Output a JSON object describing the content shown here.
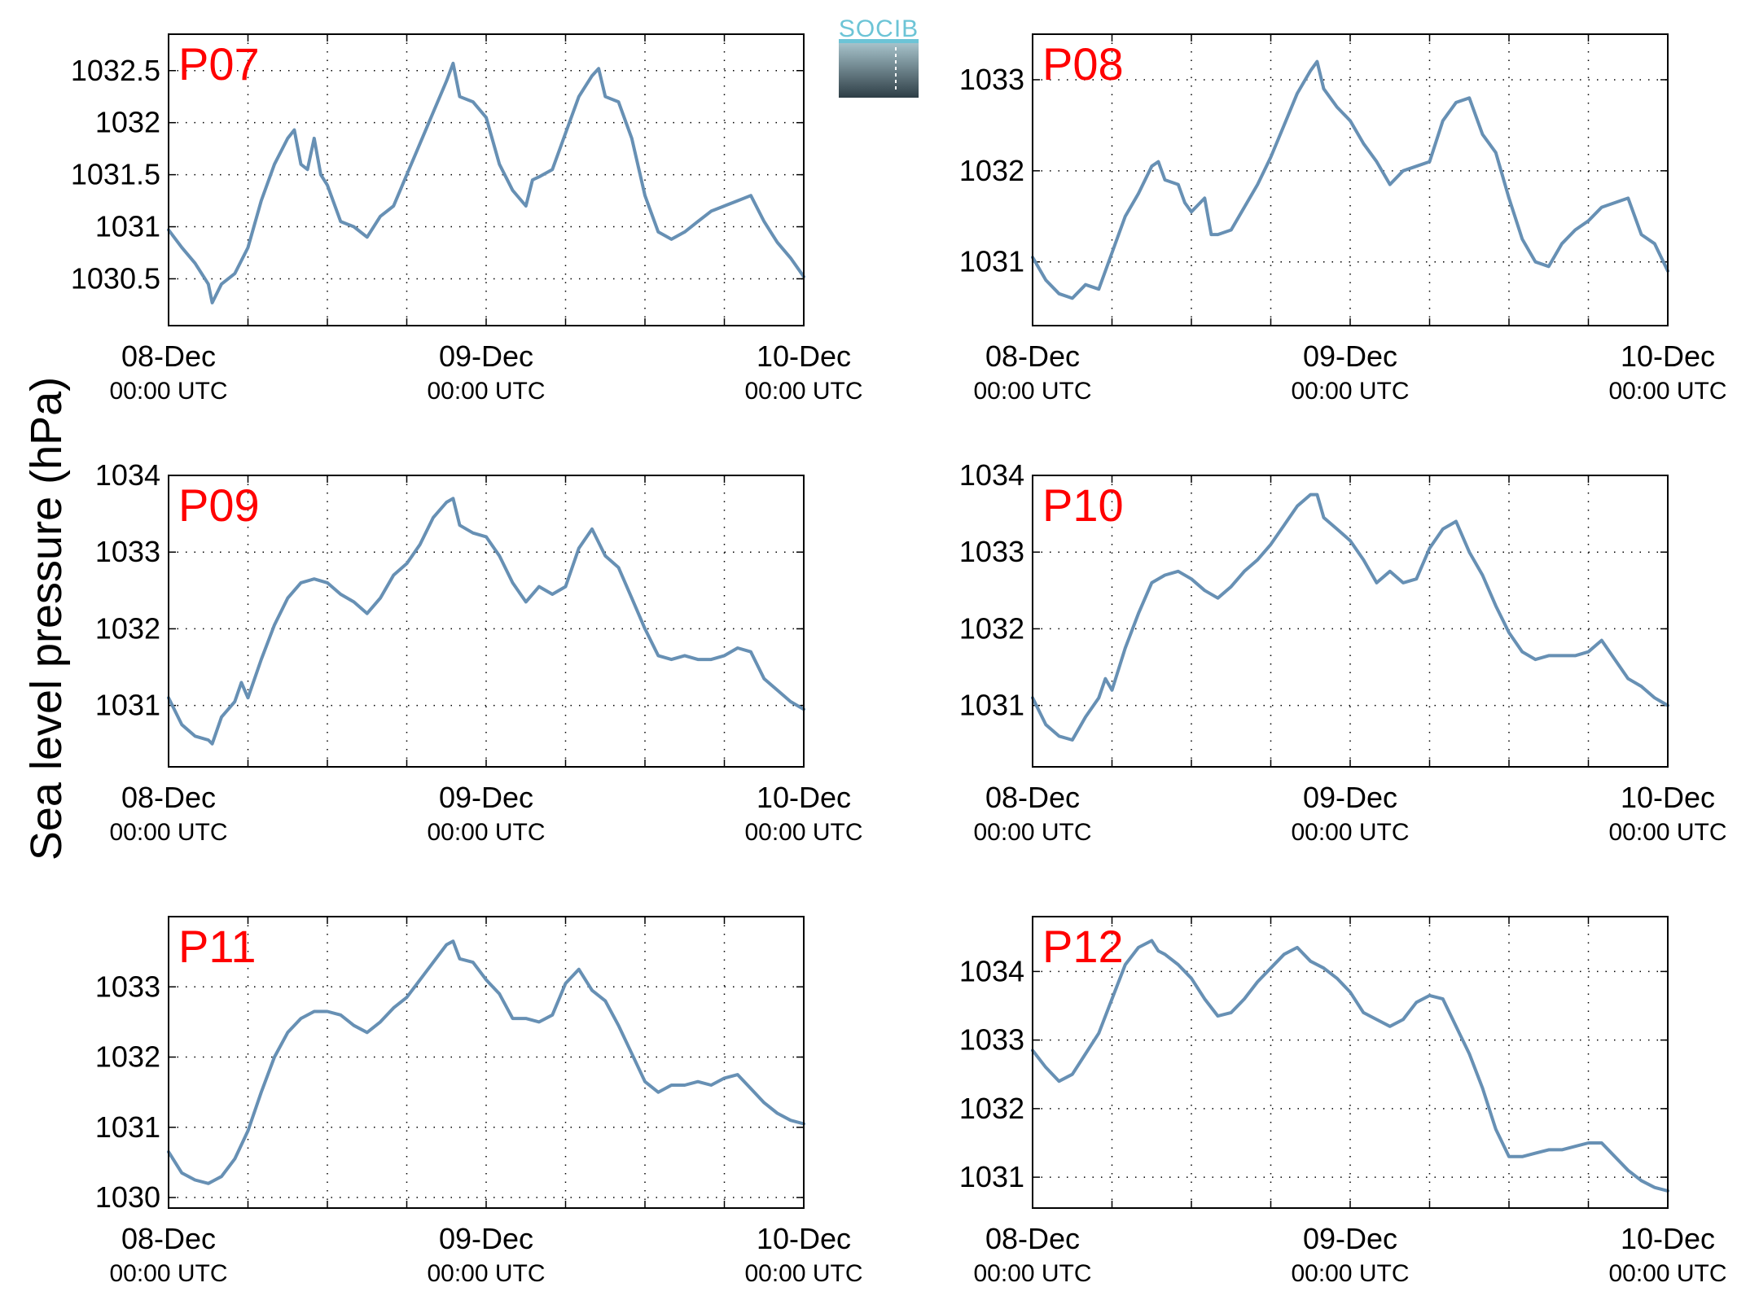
{
  "figure": {
    "ylabel": "Sea level pressure (hPa)",
    "logo_text": "SOCIB",
    "line_color": "#6790b4",
    "label_color": "#ff0000",
    "grid": "dotted"
  },
  "chart_data": [
    {
      "type": "line",
      "title": "P07",
      "ylabel": "Sea level pressure (hPa)",
      "x_tick_labels": [
        [
          "08-Dec",
          "00:00 UTC"
        ],
        [
          "09-Dec",
          "00:00 UTC"
        ],
        [
          "10-Dec",
          "00:00 UTC"
        ]
      ],
      "x_range_hours": [
        0,
        48
      ],
      "ylim": [
        1030.05,
        1032.85
      ],
      "yticks": [
        1030.5,
        1031,
        1031.5,
        1032,
        1032.5
      ],
      "ytick_labels": [
        "1030.5",
        "1031",
        "1031.5",
        "1032",
        "1032.5"
      ],
      "grid": true,
      "series": [
        {
          "x": [
            0,
            1,
            2,
            3,
            3.3,
            4,
            5,
            6,
            7,
            8,
            9,
            9.5,
            10,
            10.5,
            11,
            11.5,
            12,
            13,
            14,
            15,
            16,
            17,
            18,
            19,
            20,
            21,
            21.5,
            22,
            23,
            24,
            25,
            26,
            27,
            27.5,
            28,
            29,
            30,
            31,
            32,
            32.5,
            33,
            34,
            35,
            36,
            37,
            38,
            39,
            40,
            41,
            42,
            43,
            44,
            45,
            45.5,
            46,
            47,
            48
          ],
          "values": [
            1030.97,
            1030.8,
            1030.65,
            1030.45,
            1030.27,
            1030.45,
            1030.55,
            1030.8,
            1031.25,
            1031.6,
            1031.85,
            1031.93,
            1031.6,
            1031.55,
            1031.85,
            1031.5,
            1031.4,
            1031.05,
            1031.0,
            1030.9,
            1031.1,
            1031.2,
            1031.5,
            1031.8,
            1032.1,
            1032.4,
            1032.57,
            1032.25,
            1032.2,
            1032.05,
            1031.6,
            1031.35,
            1031.2,
            1031.45,
            1031.48,
            1031.55,
            1031.9,
            1032.25,
            1032.45,
            1032.52,
            1032.25,
            1032.2,
            1031.85,
            1031.3,
            1030.95,
            1030.88,
            1030.95,
            1031.05,
            1031.15,
            1031.2,
            1031.25,
            1031.3,
            1031.05,
            1030.95,
            1030.85,
            1030.7,
            1030.52
          ]
        }
      ]
    },
    {
      "type": "line",
      "title": "P08",
      "ylabel": "Sea level pressure (hPa)",
      "x_tick_labels": [
        [
          "08-Dec",
          "00:00 UTC"
        ],
        [
          "09-Dec",
          "00:00 UTC"
        ],
        [
          "10-Dec",
          "00:00 UTC"
        ]
      ],
      "x_range_hours": [
        0,
        48
      ],
      "ylim": [
        1030.3,
        1033.5
      ],
      "yticks": [
        1031,
        1032,
        1033
      ],
      "ytick_labels": [
        "1031",
        "1032",
        "1033"
      ],
      "grid": true,
      "series": [
        {
          "x": [
            0,
            1,
            2,
            3,
            4,
            5,
            6,
            7,
            8,
            9,
            9.5,
            10,
            11,
            11.5,
            12,
            13,
            13.5,
            14,
            15,
            16,
            17,
            18,
            19,
            20,
            21,
            21.5,
            22,
            23,
            24,
            25,
            26,
            27,
            28,
            29,
            30,
            31,
            32,
            33,
            34,
            35,
            36,
            37,
            38,
            39,
            40,
            41,
            42,
            43,
            44,
            45,
            46,
            47,
            48
          ],
          "values": [
            1031.05,
            1030.8,
            1030.65,
            1030.6,
            1030.75,
            1030.7,
            1031.1,
            1031.5,
            1031.75,
            1032.05,
            1032.1,
            1031.9,
            1031.85,
            1031.65,
            1031.55,
            1031.7,
            1031.3,
            1031.3,
            1031.35,
            1031.6,
            1031.85,
            1032.15,
            1032.5,
            1032.85,
            1033.1,
            1033.2,
            1032.9,
            1032.7,
            1032.55,
            1032.3,
            1032.1,
            1031.85,
            1032.0,
            1032.05,
            1032.1,
            1032.55,
            1032.75,
            1032.8,
            1032.4,
            1032.2,
            1031.7,
            1031.25,
            1031.0,
            1030.95,
            1031.2,
            1031.35,
            1031.45,
            1031.6,
            1031.65,
            1031.7,
            1031.3,
            1031.2,
            1030.9
          ]
        }
      ]
    },
    {
      "type": "line",
      "title": "P09",
      "ylabel": "Sea level pressure (hPa)",
      "x_tick_labels": [
        [
          "08-Dec",
          "00:00 UTC"
        ],
        [
          "09-Dec",
          "00:00 UTC"
        ],
        [
          "10-Dec",
          "00:00 UTC"
        ]
      ],
      "x_range_hours": [
        0,
        48
      ],
      "ylim": [
        1030.2,
        1034.0
      ],
      "yticks": [
        1031,
        1032,
        1033,
        1034
      ],
      "ytick_labels": [
        "1031",
        "1032",
        "1033",
        "1034"
      ],
      "grid": true,
      "series": [
        {
          "x": [
            0,
            1,
            2,
            3,
            3.3,
            4,
            5,
            5.5,
            6,
            7,
            8,
            9,
            10,
            11,
            12,
            13,
            14,
            15,
            16,
            17,
            18,
            19,
            20,
            21,
            21.5,
            22,
            23,
            24,
            25,
            26,
            27,
            28,
            29,
            30,
            31,
            32,
            33,
            34,
            35,
            36,
            37,
            38,
            39,
            40,
            41,
            42,
            43,
            44,
            45,
            46,
            47,
            48
          ],
          "values": [
            1031.1,
            1030.75,
            1030.6,
            1030.55,
            1030.5,
            1030.85,
            1031.05,
            1031.3,
            1031.1,
            1031.6,
            1032.05,
            1032.4,
            1032.6,
            1032.65,
            1032.6,
            1032.45,
            1032.35,
            1032.2,
            1032.4,
            1032.7,
            1032.85,
            1033.1,
            1033.45,
            1033.65,
            1033.7,
            1033.35,
            1033.25,
            1033.2,
            1032.95,
            1032.6,
            1032.35,
            1032.55,
            1032.45,
            1032.55,
            1033.05,
            1033.3,
            1032.95,
            1032.8,
            1032.4,
            1032.0,
            1031.65,
            1031.6,
            1031.65,
            1031.6,
            1031.6,
            1031.65,
            1031.75,
            1031.7,
            1031.35,
            1031.2,
            1031.05,
            1030.95
          ]
        }
      ]
    },
    {
      "type": "line",
      "title": "P10",
      "ylabel": "Sea level pressure (hPa)",
      "x_tick_labels": [
        [
          "08-Dec",
          "00:00 UTC"
        ],
        [
          "09-Dec",
          "00:00 UTC"
        ],
        [
          "10-Dec",
          "00:00 UTC"
        ]
      ],
      "x_range_hours": [
        0,
        48
      ],
      "ylim": [
        1030.2,
        1034.0
      ],
      "yticks": [
        1031,
        1032,
        1033,
        1034
      ],
      "ytick_labels": [
        "1031",
        "1032",
        "1033",
        "1034"
      ],
      "grid": true,
      "series": [
        {
          "x": [
            0,
            1,
            2,
            3,
            4,
            5,
            5.5,
            6,
            7,
            8,
            9,
            10,
            11,
            12,
            13,
            14,
            15,
            16,
            17,
            18,
            19,
            20,
            21,
            21.5,
            22,
            23,
            24,
            25,
            26,
            27,
            28,
            29,
            30,
            31,
            32,
            33,
            34,
            35,
            36,
            37,
            38,
            39,
            40,
            41,
            42,
            43,
            44,
            45,
            46,
            47,
            48
          ],
          "values": [
            1031.1,
            1030.75,
            1030.6,
            1030.55,
            1030.85,
            1031.1,
            1031.35,
            1031.2,
            1031.75,
            1032.2,
            1032.6,
            1032.7,
            1032.75,
            1032.65,
            1032.5,
            1032.4,
            1032.55,
            1032.75,
            1032.9,
            1033.1,
            1033.35,
            1033.6,
            1033.75,
            1033.75,
            1033.45,
            1033.3,
            1033.15,
            1032.9,
            1032.6,
            1032.75,
            1032.6,
            1032.65,
            1033.05,
            1033.3,
            1033.4,
            1033.0,
            1032.7,
            1032.3,
            1031.95,
            1031.7,
            1031.6,
            1031.65,
            1031.65,
            1031.65,
            1031.7,
            1031.85,
            1031.6,
            1031.35,
            1031.25,
            1031.1,
            1031.0
          ]
        }
      ]
    },
    {
      "type": "line",
      "title": "P11",
      "ylabel": "Sea level pressure (hPa)",
      "x_tick_labels": [
        [
          "08-Dec",
          "00:00 UTC"
        ],
        [
          "09-Dec",
          "00:00 UTC"
        ],
        [
          "10-Dec",
          "00:00 UTC"
        ]
      ],
      "x_range_hours": [
        0,
        48
      ],
      "ylim": [
        1029.85,
        1034.0
      ],
      "yticks": [
        1030,
        1031,
        1032,
        1033
      ],
      "ytick_labels": [
        "1030",
        "1031",
        "1032",
        "1033"
      ],
      "grid": true,
      "series": [
        {
          "x": [
            0,
            1,
            2,
            3,
            3.5,
            4,
            5,
            6,
            7,
            8,
            9,
            10,
            11,
            12,
            13,
            14,
            15,
            16,
            17,
            18,
            19,
            20,
            21,
            21.5,
            22,
            23,
            24,
            25,
            26,
            27,
            28,
            29,
            30,
            31,
            32,
            33,
            34,
            35,
            36,
            37,
            38,
            39,
            40,
            41,
            42,
            43,
            44,
            45,
            46,
            47,
            48
          ],
          "values": [
            1030.65,
            1030.35,
            1030.25,
            1030.2,
            1030.25,
            1030.3,
            1030.55,
            1030.95,
            1031.5,
            1032.0,
            1032.35,
            1032.55,
            1032.65,
            1032.65,
            1032.6,
            1032.45,
            1032.35,
            1032.5,
            1032.7,
            1032.85,
            1033.1,
            1033.35,
            1033.6,
            1033.65,
            1033.4,
            1033.35,
            1033.1,
            1032.9,
            1032.55,
            1032.55,
            1032.5,
            1032.6,
            1033.05,
            1033.25,
            1032.95,
            1032.8,
            1032.45,
            1032.05,
            1031.65,
            1031.5,
            1031.6,
            1031.6,
            1031.65,
            1031.6,
            1031.7,
            1031.75,
            1031.55,
            1031.35,
            1031.2,
            1031.1,
            1031.05
          ]
        }
      ]
    },
    {
      "type": "line",
      "title": "P12",
      "ylabel": "Sea level pressure (hPa)",
      "x_tick_labels": [
        [
          "08-Dec",
          "00:00 UTC"
        ],
        [
          "09-Dec",
          "00:00 UTC"
        ],
        [
          "10-Dec",
          "00:00 UTC"
        ]
      ],
      "x_range_hours": [
        0,
        48
      ],
      "ylim": [
        1030.55,
        1034.8
      ],
      "yticks": [
        1031,
        1032,
        1033,
        1034
      ],
      "ytick_labels": [
        "1031",
        "1032",
        "1033",
        "1034"
      ],
      "grid": true,
      "series": [
        {
          "x": [
            0,
            1,
            2,
            3,
            4,
            5,
            6,
            7,
            8,
            9,
            9.5,
            10,
            11,
            12,
            13,
            14,
            15,
            16,
            17,
            18,
            19,
            20,
            21,
            22,
            23,
            24,
            25,
            26,
            27,
            28,
            29,
            30,
            31,
            32,
            33,
            34,
            35,
            36,
            37,
            38,
            39,
            40,
            41,
            42,
            43,
            44,
            45,
            46,
            47,
            48
          ],
          "values": [
            1032.85,
            1032.6,
            1032.4,
            1032.5,
            1032.8,
            1033.1,
            1033.6,
            1034.1,
            1034.35,
            1034.45,
            1034.3,
            1034.25,
            1034.1,
            1033.9,
            1033.6,
            1033.35,
            1033.4,
            1033.6,
            1033.85,
            1034.05,
            1034.25,
            1034.35,
            1034.15,
            1034.05,
            1033.9,
            1033.7,
            1033.4,
            1033.3,
            1033.2,
            1033.3,
            1033.55,
            1033.65,
            1033.6,
            1033.2,
            1032.8,
            1032.3,
            1031.7,
            1031.3,
            1031.3,
            1031.35,
            1031.4,
            1031.4,
            1031.45,
            1031.5,
            1031.5,
            1031.3,
            1031.1,
            1030.95,
            1030.85,
            1030.8
          ]
        }
      ]
    }
  ]
}
